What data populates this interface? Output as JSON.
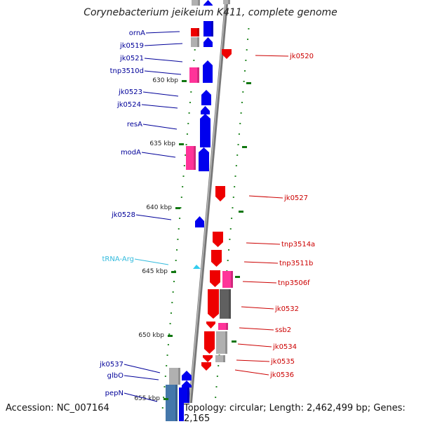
{
  "title": "Corynebacterium jeikeium K411, complete genome",
  "accession": "Accession: NC_007164",
  "topology": "Topology: circular; Length: 2,462,499 bp; Genes: 2,165",
  "colors": {
    "forward_gene": "#0000ee",
    "reverse_gene": "#ee0000",
    "transposase": "#ff3399",
    "pseudo": "#b0b0b0",
    "dark_pseudo": "#606060",
    "trna": "#33ccee",
    "label_left": "#000099",
    "label_right": "#cc0000",
    "label_trna": "#33bbdd",
    "tick": "#117711",
    "backbone": "#808080"
  },
  "left_labels": [
    {
      "name": "ornA",
      "color": "label_left"
    },
    {
      "name": "jk0519",
      "color": "label_left"
    },
    {
      "name": "jk0521",
      "color": "label_left"
    },
    {
      "name": "tnp3510d",
      "color": "label_left"
    },
    {
      "name": "jk0523",
      "color": "label_left"
    },
    {
      "name": "jk0524",
      "color": "label_left"
    },
    {
      "name": "resA",
      "color": "label_left"
    },
    {
      "name": "modA",
      "color": "label_left"
    },
    {
      "name": "jk0528",
      "color": "label_left"
    },
    {
      "name": "tRNA-Arg",
      "color": "label_trna"
    },
    {
      "name": "jk0537",
      "color": "label_left"
    },
    {
      "name": "glbO",
      "color": "label_left"
    },
    {
      "name": "pepN",
      "color": "label_left"
    }
  ],
  "right_labels": [
    {
      "name": "jk0520"
    },
    {
      "name": "jk0527"
    },
    {
      "name": "tnp3514a"
    },
    {
      "name": "tnp3511b"
    },
    {
      "name": "tnp3506f"
    },
    {
      "name": "jk0532"
    },
    {
      "name": "ssb2"
    },
    {
      "name": "jk0534"
    },
    {
      "name": "jk0535"
    },
    {
      "name": "jk0536"
    }
  ],
  "scale_labels": [
    "630 kbp",
    "635 kbp",
    "640 kbp",
    "645 kbp",
    "650 kbp",
    "655 kbp"
  ]
}
